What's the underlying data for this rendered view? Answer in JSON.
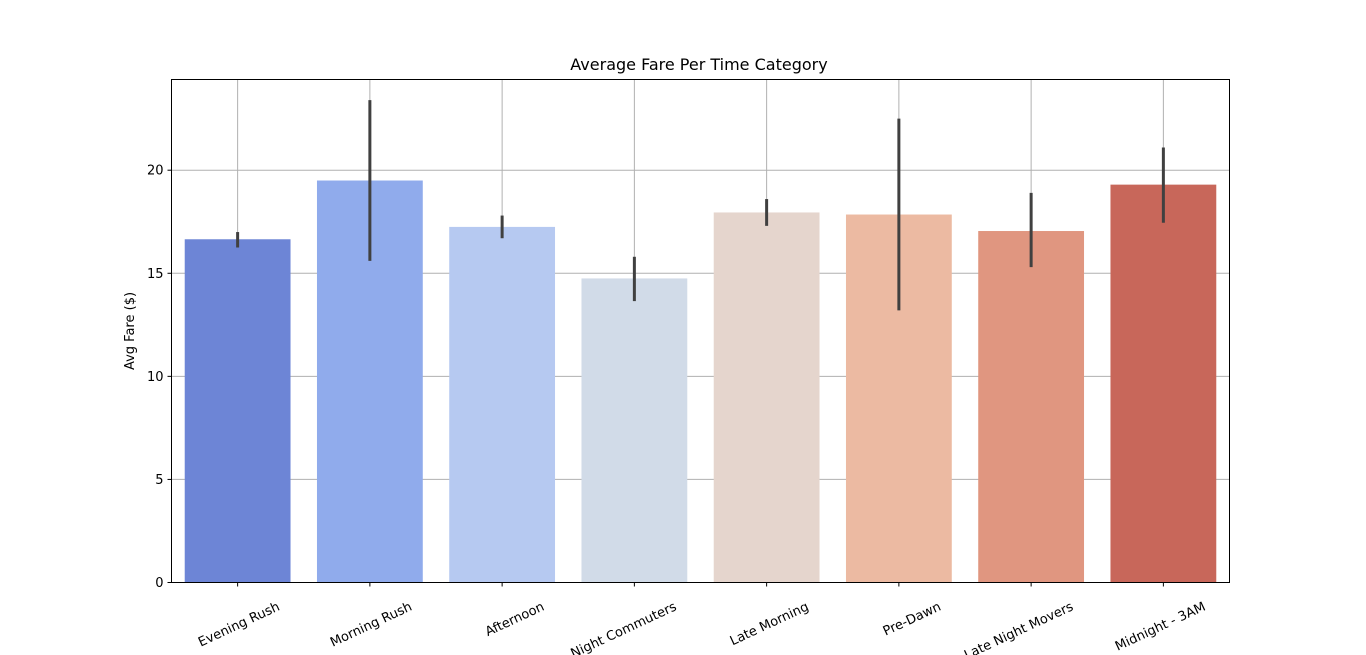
{
  "chart_data": {
    "type": "bar",
    "title": "Average Fare Per Time Category",
    "xlabel": "",
    "ylabel": "Avg Fare ($)",
    "ylim": [
      0,
      24.4
    ],
    "yticks": [
      0,
      5,
      10,
      15,
      20
    ],
    "grid": true,
    "categories": [
      "Evening Rush",
      "Morning Rush",
      "Afternoon",
      "Night Commuters",
      "Late Morning",
      "Pre-Dawn",
      "Late Night Movers",
      "Midnight - 3AM"
    ],
    "values": [
      16.65,
      19.5,
      17.25,
      14.75,
      17.95,
      17.85,
      17.05,
      19.3
    ],
    "error_low": [
      16.25,
      15.6,
      16.7,
      13.65,
      17.3,
      13.2,
      15.3,
      17.45
    ],
    "error_high": [
      17.0,
      23.4,
      17.8,
      15.8,
      18.6,
      22.5,
      18.9,
      21.1
    ],
    "colors": [
      "#6d85d6",
      "#90abec",
      "#b6c9f1",
      "#d1dbe8",
      "#e5d5cd",
      "#ecbaa2",
      "#e09680",
      "#c8675a"
    ]
  }
}
